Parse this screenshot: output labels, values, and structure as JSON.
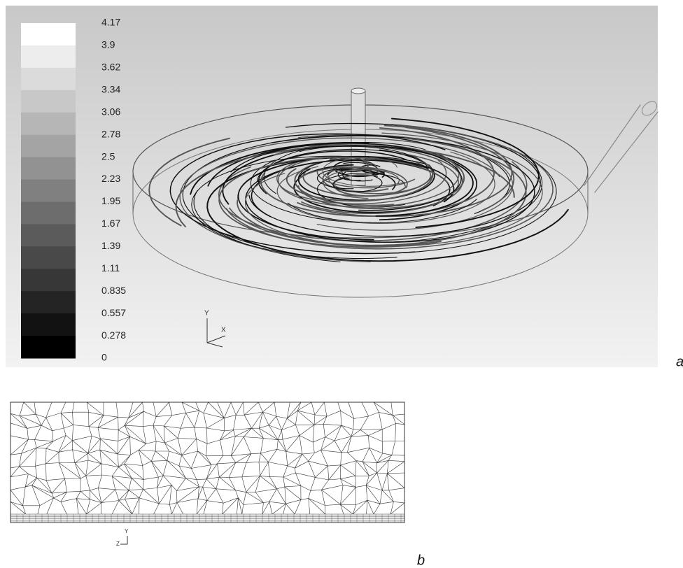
{
  "panel_a": {
    "label": "a",
    "colorbar": {
      "labels": [
        "4.17",
        "3.9",
        "3.62",
        "3.34",
        "3.06",
        "2.78",
        "2.5",
        "2.23",
        "1.95",
        "1.67",
        "1.39",
        "1.11",
        "0.835",
        "0.557",
        "0.278",
        "0"
      ]
    },
    "axes": {
      "y": "Y",
      "x": "X"
    }
  },
  "panel_b": {
    "label": "b",
    "axes": {
      "z": "Z",
      "y": "Y"
    }
  }
}
